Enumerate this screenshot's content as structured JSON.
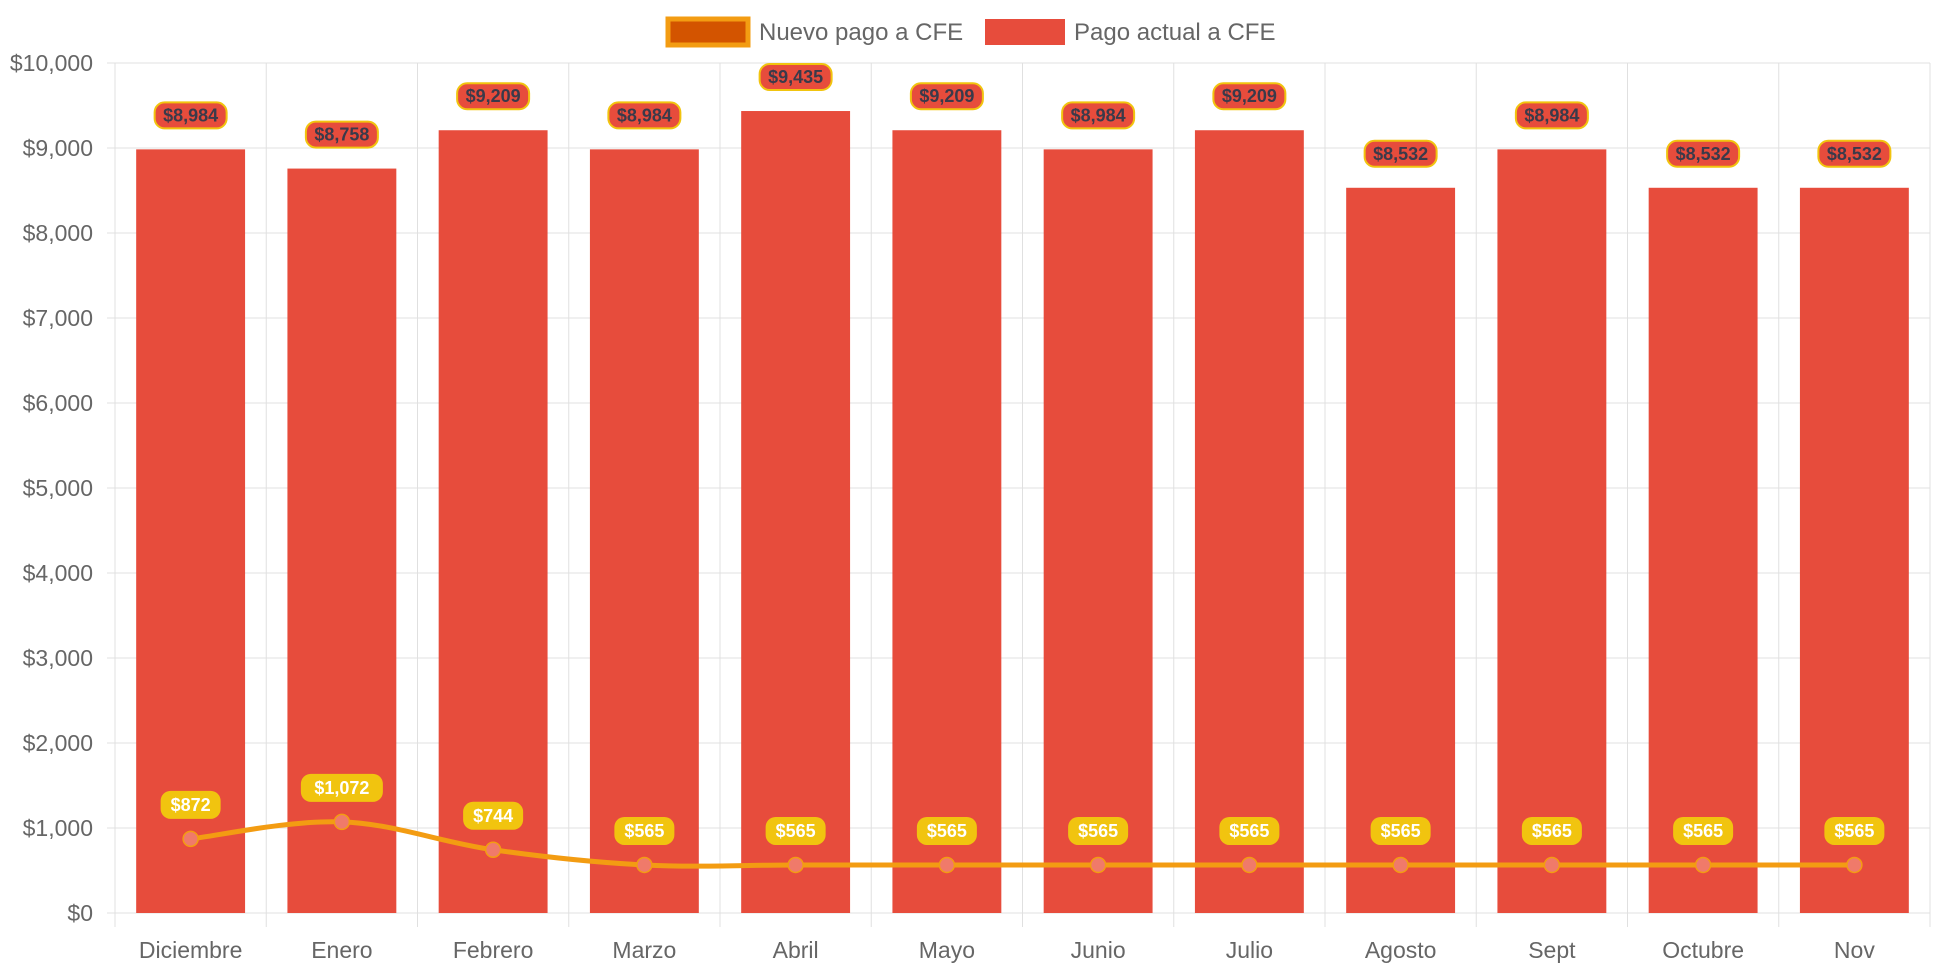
{
  "chart_data": {
    "type": "bar",
    "categories": [
      "Diciembre",
      "Enero",
      "Febrero",
      "Marzo",
      "Abril",
      "Mayo",
      "Junio",
      "Julio",
      "Agosto",
      "Sept",
      "Octubre",
      "Nov"
    ],
    "series": [
      {
        "name": "Nuevo pago a CFE",
        "type": "line",
        "values": [
          872,
          1072,
          744,
          565,
          565,
          565,
          565,
          565,
          565,
          565,
          565,
          565
        ],
        "labels": [
          "$872",
          "$1,072",
          "$744",
          "$565",
          "$565",
          "$565",
          "$565",
          "$565",
          "$565",
          "$565",
          "$565",
          "$565"
        ],
        "color": "#f39c12",
        "legend_fill": "#d35400",
        "point_color": "#f07a6a",
        "label_bg": "#f1c40f"
      },
      {
        "name": "Pago actual a CFE",
        "type": "bar",
        "values": [
          8984,
          8758,
          9209,
          8984,
          9435,
          9209,
          8984,
          9209,
          8532,
          8984,
          8532,
          8532
        ],
        "labels": [
          "$8,984",
          "$8,758",
          "$9,209",
          "$8,984",
          "$9,435",
          "$9,209",
          "$8,984",
          "$9,209",
          "$8,532",
          "$8,984",
          "$8,532",
          "$8,532"
        ],
        "color": "#e74c3c",
        "label_border": "#f1c40f"
      }
    ],
    "yticks": [
      0,
      1000,
      2000,
      3000,
      4000,
      5000,
      6000,
      7000,
      8000,
      9000,
      10000
    ],
    "ytick_labels": [
      "$0",
      "$1,000",
      "$2,000",
      "$3,000",
      "$4,000",
      "$5,000",
      "$6,000",
      "$7,000",
      "$8,000",
      "$9,000",
      "$10,000"
    ],
    "ylim": [
      0,
      10000
    ],
    "grid": true,
    "legend_position": "top-center",
    "title": "",
    "xlabel": "",
    "ylabel": ""
  }
}
